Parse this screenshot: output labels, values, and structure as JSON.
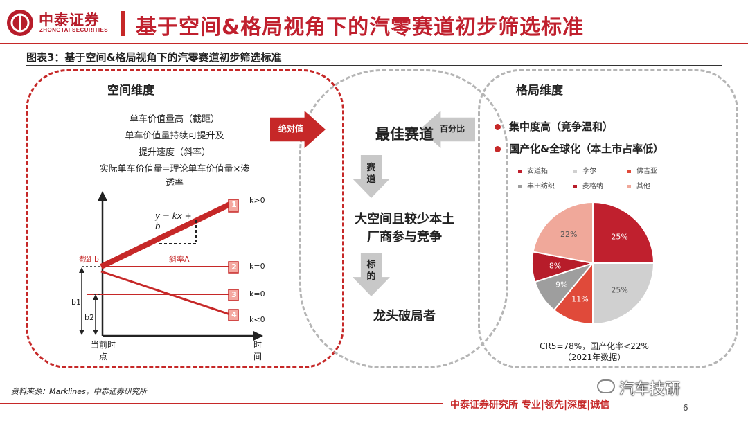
{
  "header": {
    "logo_cn": "中泰证券",
    "logo_en": "ZHONGTAI SECURITIES",
    "title": "基于空间&格局视角下的汽零赛道初步筛选标准"
  },
  "figure": {
    "label": "图表3：基于空间&格局视角下的汽零赛道初步筛选标准"
  },
  "left": {
    "title": "空间维度",
    "lines": [
      "单车价值量高（截距）",
      "单车价值量持续可提升及",
      "提升速度（斜率）",
      "实际单车价值量=理论单车价值量×渗",
      "透率"
    ],
    "diagram": {
      "equation_line1": "y = kx +",
      "equation_line2": "b",
      "intercept_label": "截距b",
      "slope_label": "斜率A",
      "b1": "b1",
      "b2": "b2",
      "lines": [
        {
          "num": "1",
          "k": "k>0"
        },
        {
          "num": "2",
          "k": "k=0"
        },
        {
          "num": "3",
          "k": "k=0"
        },
        {
          "num": "4",
          "k": "k<0"
        }
      ],
      "x_origin_line1": "当前时",
      "x_origin_line2": "点",
      "x_axis_line1": "时",
      "x_axis_line2": "间"
    }
  },
  "center": {
    "left_arrow": "绝对值",
    "right_arrow": "百分比",
    "best": "最佳赛道",
    "arrow1": [
      "赛",
      "道"
    ],
    "middle_line1": "大空间且较少本土",
    "middle_line2": "厂商参与竞争",
    "arrow2": [
      "标",
      "的"
    ],
    "leader": "龙头破局者"
  },
  "right": {
    "title": "格局维度",
    "bullets": [
      "集中度高（竞争温和）",
      "国产化&全球化（本土市占率低）"
    ],
    "legend": [
      {
        "name": "安道拓",
        "color": "#c0202e"
      },
      {
        "name": "李尔",
        "color": "#d0d0d0"
      },
      {
        "name": "佛吉亚",
        "color": "#e04a3a"
      },
      {
        "name": "丰田纺织",
        "color": "#9e9e9e"
      },
      {
        "name": "麦格纳",
        "color": "#b71c2a"
      },
      {
        "name": "其他",
        "color": "#f0a89a"
      }
    ],
    "note_line1": "CR5=78%，国产化率<22%",
    "note_line2": "（2021年数据）"
  },
  "chart_data": {
    "type": "pie",
    "categories": [
      "安道拓",
      "李尔",
      "佛吉亚",
      "丰田纺织",
      "麦格纳",
      "其他"
    ],
    "values": [
      25,
      25,
      11,
      9,
      8,
      22
    ],
    "labels": [
      "25%",
      "25%",
      "11%",
      "9%",
      "8%",
      "22%"
    ],
    "colors": [
      "#c0202e",
      "#d0d0d0",
      "#e04a3a",
      "#9e9e9e",
      "#b71c2a",
      "#f0a89a"
    ],
    "legend_position": "top"
  },
  "footer": {
    "source": "资料来源：Marklines，中泰证券研究所",
    "slogan": "中泰证券研究所 专业|领先|深度|诚信",
    "page": "6",
    "watermark": "汽车技研"
  }
}
